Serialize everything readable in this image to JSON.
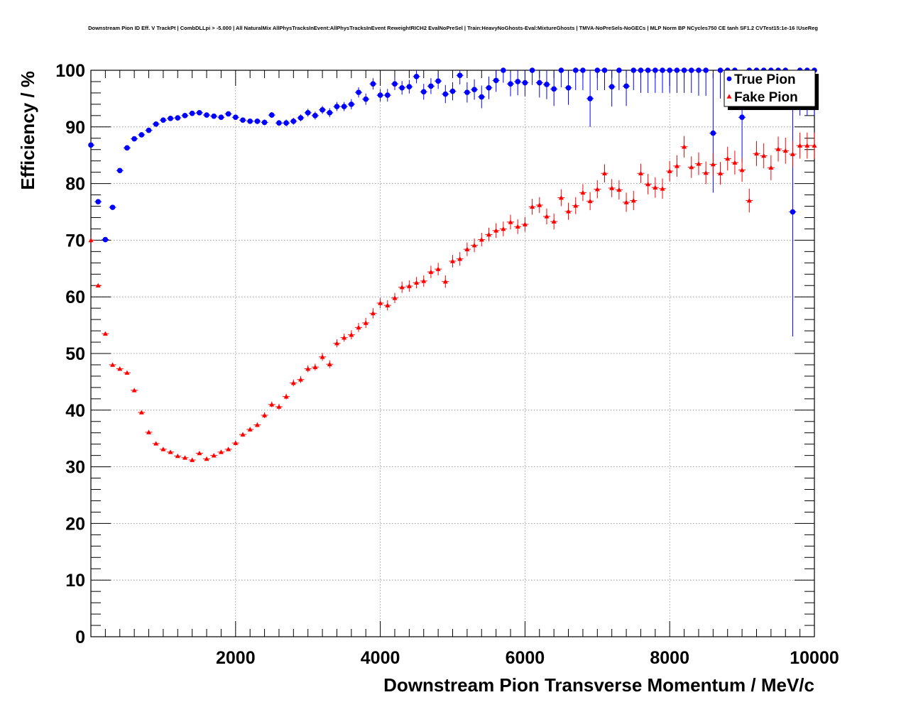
{
  "chart_data": {
    "type": "scatter",
    "title": "Downstream Pion ID Eff. V TrackPt | CombDLLpi > -5.000 | All NaturalMix AllPhysTracksInEvent:AllPhysTracksInEvent ReweightRICH2 EvalNoPreSel | Train:HeavyNoGhosts-Eval:MixtureGhosts | TMVA-NoPreSels-NoGECs | MLP Norm BP NCycles750 CE tanh SF1.2 CVTest15:1e-16 !UseReg",
    "xlabel": "Downstream Pion Transverse Momentum / MeV/c",
    "ylabel": "Efficiency / %",
    "xlim": [
      0,
      10000
    ],
    "ylim": [
      0,
      100
    ],
    "xticks": [
      2000,
      4000,
      6000,
      8000,
      10000
    ],
    "yticks": [
      0,
      10,
      20,
      30,
      40,
      50,
      60,
      70,
      80,
      90,
      100
    ],
    "grid": true,
    "legend_position": "top-right",
    "series": [
      {
        "name": "True Pion",
        "color": "#0000ff",
        "marker": "circle",
        "x": [
          0,
          100,
          200,
          300,
          400,
          500,
          600,
          700,
          800,
          900,
          1000,
          1100,
          1200,
          1300,
          1400,
          1500,
          1600,
          1700,
          1800,
          1900,
          2000,
          2100,
          2200,
          2300,
          2400,
          2500,
          2600,
          2700,
          2800,
          2900,
          3000,
          3100,
          3200,
          3300,
          3400,
          3500,
          3600,
          3700,
          3800,
          3900,
          4000,
          4100,
          4200,
          4300,
          4400,
          4500,
          4600,
          4700,
          4800,
          4900,
          5000,
          5100,
          5200,
          5300,
          5400,
          5500,
          5600,
          5700,
          5800,
          5900,
          6000,
          6100,
          6200,
          6300,
          6400,
          6500,
          6600,
          6700,
          6800,
          6900,
          7000,
          7100,
          7200,
          7300,
          7400,
          7500,
          7600,
          7700,
          7800,
          7900,
          8000,
          8100,
          8200,
          8300,
          8400,
          8500,
          8600,
          8700,
          8800,
          8900,
          9000,
          9100,
          9200,
          9300,
          9400,
          9500,
          9600,
          9700,
          9800,
          9900,
          10000
        ],
        "y": [
          86.8,
          76.8,
          70.1,
          75.8,
          82.3,
          86.3,
          87.9,
          88.6,
          89.4,
          90.5,
          91.2,
          91.5,
          91.6,
          92.0,
          92.4,
          92.5,
          92.1,
          91.9,
          91.7,
          92.3,
          91.7,
          91.2,
          91.0,
          91.0,
          90.8,
          92.1,
          90.7,
          90.7,
          91.0,
          91.6,
          92.5,
          92.0,
          93.0,
          92.5,
          93.6,
          93.6,
          94.0,
          96.1,
          94.9,
          97.6,
          95.6,
          95.6,
          97.6,
          96.9,
          97.1,
          98.9,
          96.2,
          97.2,
          98.1,
          95.8,
          96.3,
          99.1,
          96.1,
          96.6,
          95.3,
          96.9,
          98.2,
          100.0,
          97.6,
          98.0,
          97.8,
          100.0,
          97.8,
          97.5,
          96.7,
          100.0,
          96.9,
          100.0,
          100.0,
          95.0,
          100.0,
          100.0,
          97.1,
          100.0,
          97.2,
          100.0,
          100.0,
          100.0,
          100.0,
          100.0,
          100.0,
          100.0,
          100.0,
          100.0,
          100.0,
          100.0,
          88.9,
          100.0,
          100.0,
          100.0,
          91.7,
          100.0,
          100.0,
          100.0,
          100.0,
          100.0,
          100.0,
          75.0,
          100.0,
          100.0,
          100.0
        ],
        "yerr": [
          0.4,
          0.3,
          0.3,
          0.3,
          0.3,
          0.3,
          0.3,
          0.3,
          0.3,
          0.3,
          0.3,
          0.3,
          0.3,
          0.3,
          0.3,
          0.3,
          0.3,
          0.3,
          0.3,
          0.4,
          0.4,
          0.4,
          0.4,
          0.5,
          0.5,
          0.5,
          0.5,
          0.6,
          0.6,
          0.6,
          0.7,
          0.7,
          0.7,
          0.8,
          0.8,
          0.8,
          0.9,
          0.9,
          1.0,
          1.0,
          1.1,
          1.1,
          1.1,
          1.2,
          1.2,
          1.2,
          1.4,
          1.4,
          1.4,
          1.6,
          1.6,
          1.6,
          1.8,
          1.8,
          2.0,
          2.0,
          2.0,
          2.2,
          2.2,
          2.4,
          2.4,
          2.6,
          2.6,
          2.6,
          3.0,
          3.0,
          3.0,
          3.5,
          3.5,
          5.0,
          3.5,
          3.5,
          3.5,
          3.5,
          3.5,
          3.5,
          4.0,
          4.0,
          4.0,
          4.0,
          4.0,
          4.0,
          4.0,
          4.0,
          4.5,
          4.5,
          10.5,
          5.0,
          5.0,
          5.0,
          8.0,
          5.0,
          5.0,
          5.0,
          5.0,
          5.0,
          5.0,
          22.0,
          8.0,
          8.0,
          8.0
        ]
      },
      {
        "name": "Fake Pion",
        "color": "#ff0000",
        "marker": "triangle",
        "x": [
          0,
          100,
          200,
          300,
          400,
          500,
          600,
          700,
          800,
          900,
          1000,
          1100,
          1200,
          1300,
          1400,
          1500,
          1600,
          1700,
          1800,
          1900,
          2000,
          2100,
          2200,
          2300,
          2400,
          2500,
          2600,
          2700,
          2800,
          2900,
          3000,
          3100,
          3200,
          3300,
          3400,
          3500,
          3600,
          3700,
          3800,
          3900,
          4000,
          4100,
          4200,
          4300,
          4400,
          4500,
          4600,
          4700,
          4800,
          4900,
          5000,
          5100,
          5200,
          5300,
          5400,
          5500,
          5600,
          5700,
          5800,
          5900,
          6000,
          6100,
          6200,
          6300,
          6400,
          6500,
          6600,
          6700,
          6800,
          6900,
          7000,
          7100,
          7200,
          7300,
          7400,
          7500,
          7600,
          7700,
          7800,
          7900,
          8000,
          8100,
          8200,
          8300,
          8400,
          8500,
          8600,
          8700,
          8800,
          8900,
          9000,
          9100,
          9200,
          9300,
          9400,
          9500,
          9600,
          9700,
          9800,
          9900,
          10000
        ],
        "y": [
          70.0,
          62.0,
          53.5,
          48.0,
          47.3,
          46.6,
          43.5,
          39.6,
          36.1,
          34.1,
          33.1,
          32.6,
          31.9,
          31.6,
          31.2,
          32.4,
          31.4,
          32.0,
          32.6,
          33.1,
          34.2,
          35.7,
          36.6,
          37.4,
          39.1,
          41.0,
          40.6,
          42.4,
          44.8,
          45.4,
          47.3,
          47.6,
          49.4,
          48.1,
          51.8,
          52.8,
          53.3,
          54.6,
          55.4,
          57.1,
          58.9,
          58.5,
          59.8,
          61.7,
          61.9,
          62.5,
          62.8,
          64.4,
          64.9,
          62.7,
          66.3,
          66.7,
          68.4,
          69.1,
          70.1,
          71.0,
          71.7,
          72.0,
          73.2,
          72.4,
          72.8,
          75.9,
          76.2,
          74.2,
          73.3,
          77.5,
          75.1,
          76.1,
          78.4,
          76.9,
          79.0,
          81.8,
          79.2,
          78.9,
          76.7,
          77.0,
          81.8,
          79.9,
          79.3,
          79.1,
          82.2,
          83.1,
          86.5,
          82.9,
          83.5,
          81.9,
          83.4,
          81.8,
          84.4,
          83.7,
          82.4,
          77.0,
          85.3,
          84.9,
          82.8,
          86.1,
          85.8,
          85.2,
          86.7,
          86.7,
          86.7
        ],
        "yerr": [
          0.3,
          0.3,
          0.3,
          0.3,
          0.3,
          0.3,
          0.3,
          0.3,
          0.3,
          0.3,
          0.3,
          0.3,
          0.3,
          0.3,
          0.3,
          0.3,
          0.3,
          0.3,
          0.3,
          0.3,
          0.4,
          0.4,
          0.4,
          0.4,
          0.5,
          0.5,
          0.5,
          0.5,
          0.6,
          0.6,
          0.6,
          0.6,
          0.7,
          0.7,
          0.7,
          0.7,
          0.8,
          0.8,
          0.9,
          0.9,
          0.9,
          0.9,
          0.9,
          1.0,
          1.0,
          1.0,
          1.0,
          1.1,
          1.1,
          1.1,
          1.1,
          1.2,
          1.2,
          1.2,
          1.2,
          1.2,
          1.3,
          1.3,
          1.3,
          1.3,
          1.3,
          1.4,
          1.4,
          1.4,
          1.4,
          1.5,
          1.5,
          1.5,
          1.5,
          1.6,
          1.6,
          1.6,
          1.6,
          1.7,
          1.7,
          1.7,
          1.7,
          1.8,
          1.8,
          1.8,
          1.8,
          1.9,
          1.9,
          1.9,
          2.0,
          2.0,
          2.0,
          2.0,
          2.1,
          2.1,
          2.1,
          2.1,
          2.2,
          2.2,
          2.2,
          2.2,
          2.3,
          2.3,
          2.3,
          2.3,
          2.3
        ]
      }
    ]
  }
}
